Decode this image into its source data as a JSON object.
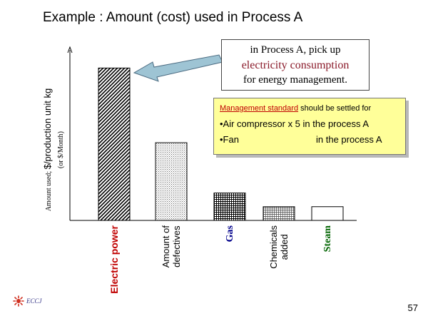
{
  "slide": {
    "title": "Example : Amount (cost) used in Process A",
    "page_number": "57",
    "logo_text": "ECCJ"
  },
  "callout": {
    "line1": "in Process A, pick up",
    "line2": "electricity consumption",
    "line3": "for energy management."
  },
  "management": {
    "head_underlined": "Management standard",
    "head_rest": " should be settled for",
    "item1": "•Air compressor x 5 in the process A",
    "item2_left": "•Fan",
    "item2_right": "in the process A"
  },
  "chart_data": {
    "type": "bar",
    "categories": [
      "Electric power",
      "Amount of\ndefectives",
      "Gas",
      "Chemicals\nadded",
      "Steam"
    ],
    "category_colors": [
      "#c00000",
      "#000000",
      "#00008b",
      "#000000",
      "#006400"
    ],
    "category_bold": [
      true,
      false,
      true,
      false,
      true
    ],
    "category_serif": [
      false,
      false,
      true,
      false,
      true
    ],
    "values": [
      100,
      51,
      18,
      9,
      9
    ],
    "patterns": [
      "diagonal",
      "dots",
      "grid",
      "fine-grid",
      "none"
    ],
    "ylabel_prefix": "Amount used; ",
    "ylabel_main": "$/production unit kg",
    "ylabel_alt": "(or $/Month)",
    "ylim": [
      0,
      110
    ],
    "grid": false,
    "legend": "none",
    "colors": {
      "bar_stroke": "#000000",
      "axis": "#000000"
    }
  }
}
